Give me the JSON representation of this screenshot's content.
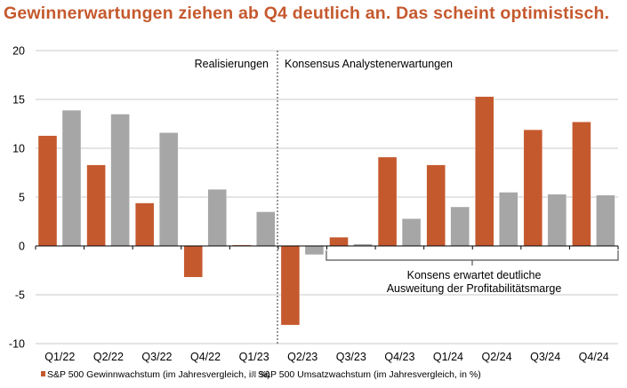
{
  "chart_data": {
    "type": "bar",
    "title": "Gewinnerwartungen ziehen ab Q4 deutlich an. Das scheint optimistisch.",
    "categories": [
      "Q1/22",
      "Q2/22",
      "Q3/22",
      "Q4/22",
      "Q1/23",
      "Q2/23",
      "Q3/23",
      "Q4/23",
      "Q1/24",
      "Q2/24",
      "Q3/24",
      "Q4/24"
    ],
    "series": [
      {
        "name": "S&P 500 Gewinnwachstum (im Jahresvergleich, in %)",
        "color": "#c5592e",
        "values": [
          11.3,
          8.3,
          4.4,
          -3.2,
          0.1,
          -8.1,
          0.9,
          9.1,
          8.3,
          15.3,
          11.9,
          12.7
        ]
      },
      {
        "name": "S&P 500 Umsatzwachstum (im Jahresvergleich, in %)",
        "color": "#a6a6a6",
        "values": [
          13.9,
          13.5,
          11.6,
          5.8,
          3.5,
          -0.9,
          0.2,
          2.8,
          4.0,
          5.5,
          5.3,
          5.2
        ]
      }
    ],
    "ylim": [
      -10,
      20
    ],
    "yticks": [
      -10,
      -5,
      0,
      5,
      10,
      15,
      20
    ],
    "grid": true,
    "legend": "bottom",
    "annotations": {
      "left_region": "Realisierungen",
      "right_region": "Konsensus Analystenerwartungen",
      "bracket_line1": "Konsens erwartet deutliche",
      "bracket_line2": "Ausweitung der Profitabilitätsmarge"
    }
  }
}
